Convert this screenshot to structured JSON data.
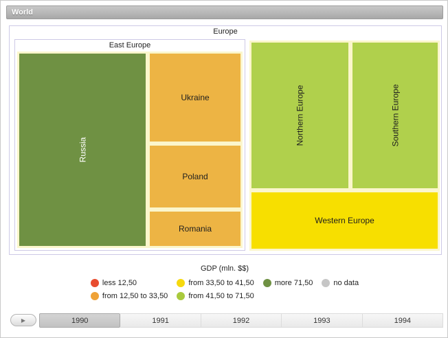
{
  "breadcrumb": {
    "title": "World"
  },
  "treemap": {
    "group_label": "Europe",
    "subgroup_label": "East Europe",
    "tile_border_color": "#fbf6cc",
    "tiles": {
      "russia": {
        "label": "Russia",
        "color": "#6f9143"
      },
      "ukraine": {
        "label": "Ukraine",
        "color": "#edb444"
      },
      "poland": {
        "label": "Poland",
        "color": "#edb444"
      },
      "romania": {
        "label": "Romania",
        "color": "#edb444"
      },
      "northern_europe": {
        "label": "Northern Europe",
        "color": "#b0d04c"
      },
      "southern_europe": {
        "label": "Southern Europe",
        "color": "#b0d04c"
      },
      "western_europe": {
        "label": "Western Europe",
        "color": "#f7df00"
      }
    }
  },
  "legend": {
    "title": "GDP (mln. $$)",
    "items": [
      {
        "label": "less 12,50",
        "color": "#e84c2f"
      },
      {
        "label": "from 12,50 to 33,50",
        "color": "#efa237"
      },
      {
        "label": "from 33,50 to 41,50",
        "color": "#f6d90e"
      },
      {
        "label": "from 41,50 to 71,50",
        "color": "#a9ca3d"
      },
      {
        "label": "more 71,50",
        "color": "#6f9143"
      },
      {
        "label": "no data",
        "color": "#c6c6c6"
      }
    ]
  },
  "timeline": {
    "play_label": "▶",
    "selected_year": "1990",
    "years": [
      "1990",
      "1991",
      "1992",
      "1993",
      "1994"
    ]
  },
  "chart_data": {
    "type": "treemap",
    "title": "GDP (mln. $$)",
    "root": "World",
    "current_level": "Europe",
    "year": "1990",
    "years": [
      "1990",
      "1991",
      "1992",
      "1993",
      "1994"
    ],
    "groups": [
      {
        "name": "East Europe",
        "children": [
          {
            "name": "Russia",
            "bin": "more 71,50",
            "color": "#6f9143"
          },
          {
            "name": "Ukraine",
            "bin": "from 12,50 to 33,50",
            "color": "#edb444"
          },
          {
            "name": "Poland",
            "bin": "from 12,50 to 33,50",
            "color": "#edb444"
          },
          {
            "name": "Romania",
            "bin": "from 12,50 to 33,50",
            "color": "#edb444"
          }
        ]
      },
      {
        "name": "Northern Europe",
        "bin": "from 41,50 to 71,50",
        "color": "#b0d04c"
      },
      {
        "name": "Southern Europe",
        "bin": "from 41,50 to 71,50",
        "color": "#b0d04c"
      },
      {
        "name": "Western Europe",
        "bin": "from 33,50 to 41,50",
        "color": "#f7df00"
      }
    ],
    "legend_bins": [
      {
        "label": "less 12,50",
        "color": "#e84c2f"
      },
      {
        "label": "from 12,50 to 33,50",
        "color": "#efa237"
      },
      {
        "label": "from 33,50 to 41,50",
        "color": "#f6d90e"
      },
      {
        "label": "from 41,50 to 71,50",
        "color": "#a9ca3d"
      },
      {
        "label": "more 71,50",
        "color": "#6f9143"
      },
      {
        "label": "no data",
        "color": "#c6c6c6"
      }
    ]
  }
}
